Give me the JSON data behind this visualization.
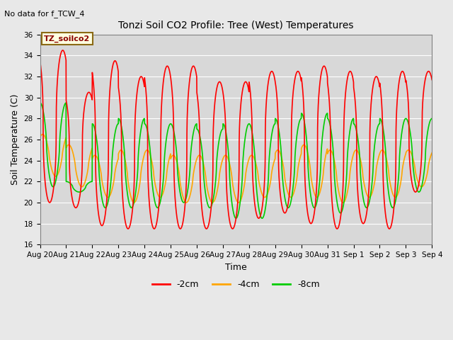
{
  "title": "Tonzi Soil CO2 Profile: Tree (West) Temperatures",
  "no_data_text": "No data for f_TCW_4",
  "box_label": "TZ_soilco2",
  "ylabel": "Soil Temperature (C)",
  "xlabel": "Time",
  "ylim": [
    16,
    36
  ],
  "yticks": [
    16,
    18,
    20,
    22,
    24,
    26,
    28,
    30,
    32,
    34,
    36
  ],
  "colors": {
    "red": "#FF0000",
    "orange": "#FFA500",
    "green": "#00CC00"
  },
  "legend_labels": [
    "-2cm",
    "-4cm",
    "-8cm"
  ],
  "bg_color": "#E8E8E8",
  "plot_bg_color": "#D8D8D8",
  "line_width": 1.2,
  "xtick_labels": [
    "Aug 20",
    "Aug 21",
    "Aug 22",
    "Aug 23",
    "Aug 24",
    "Aug 25",
    "Aug 26",
    "Aug 27",
    "Aug 28",
    "Aug 29",
    "Aug 30",
    "Aug 31",
    "Sep 1",
    "Sep 2",
    "Sep 3",
    "Sep 4"
  ],
  "red_peaks": [
    34.5,
    30.5,
    33.5,
    32.0,
    33.0,
    33.0,
    31.5,
    31.5,
    32.5,
    32.5,
    33.0,
    32.5,
    32.0,
    32.5,
    32.5
  ],
  "red_troughs": [
    20.0,
    19.5,
    17.8,
    17.5,
    17.5,
    17.5,
    17.5,
    17.5,
    18.5,
    19.0,
    18.0,
    17.5,
    18.0,
    17.5,
    21.0
  ],
  "green_peaks": [
    29.5,
    22.0,
    27.5,
    28.0,
    27.5,
    27.5,
    27.0,
    27.5,
    27.5,
    28.0,
    28.5,
    28.0,
    27.5,
    28.0,
    28.0
  ],
  "green_troughs": [
    21.5,
    21.0,
    19.5,
    19.5,
    19.5,
    20.0,
    19.5,
    18.5,
    18.5,
    19.5,
    19.5,
    19.0,
    19.5,
    19.5,
    21.0
  ],
  "orange_peaks": [
    26.5,
    25.5,
    24.5,
    25.0,
    25.0,
    24.5,
    24.5,
    24.5,
    24.5,
    25.0,
    25.5,
    25.0,
    25.0,
    25.0,
    25.0
  ],
  "orange_troughs": [
    22.5,
    21.5,
    20.5,
    20.0,
    20.5,
    20.0,
    20.0,
    20.0,
    20.5,
    20.5,
    20.5,
    20.0,
    20.5,
    20.5,
    21.5
  ]
}
